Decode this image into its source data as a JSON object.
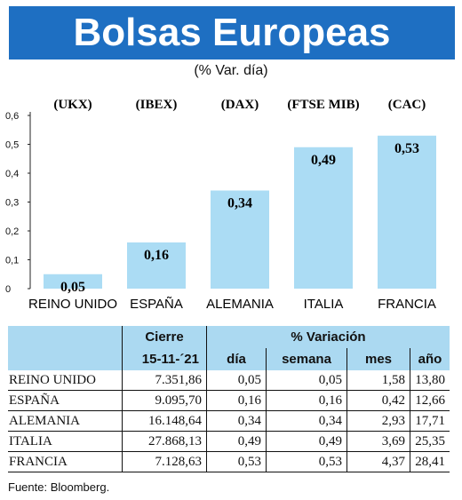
{
  "header": {
    "title": "Bolsas Europeas",
    "subtitle": "(% Var. día)"
  },
  "chart_data": {
    "type": "bar",
    "categories": [
      "REINO UNIDO",
      "ESPAÑA",
      "ALEMANIA",
      "ITALIA",
      "FRANCIA"
    ],
    "indices": [
      "(UKX)",
      "(IBEX)",
      "(DAX)",
      "(FTSE MIB)",
      "(CAC)"
    ],
    "values": [
      0.05,
      0.16,
      0.34,
      0.49,
      0.53
    ],
    "value_labels": [
      "0,05",
      "0,16",
      "0,34",
      "0,49",
      "0,53"
    ],
    "yticks": [
      "0",
      "0,1",
      "0,2",
      "0,3",
      "0,4",
      "0,5",
      "0,6"
    ],
    "ylim": [
      0,
      0.6
    ],
    "bar_color": "#abdcf4",
    "grid": false
  },
  "table": {
    "group_headers": {
      "cierre": "Cierre",
      "variacion": "% Variación"
    },
    "sub_headers": {
      "date": "15-11-´21",
      "dia": "día",
      "semana": "semana",
      "mes": "mes",
      "ano": "año"
    },
    "rows": [
      {
        "name": "REINO UNIDO",
        "cierre": "7.351,86",
        "dia": "0,05",
        "semana": "0,05",
        "mes": "1,58",
        "ano": "13,80"
      },
      {
        "name": "ESPAÑA",
        "cierre": "9.095,70",
        "dia": "0,16",
        "semana": "0,16",
        "mes": "0,42",
        "ano": "12,66"
      },
      {
        "name": "ALEMANIA",
        "cierre": "16.148,64",
        "dia": "0,34",
        "semana": "0,34",
        "mes": "2,93",
        "ano": "17,71"
      },
      {
        "name": "ITALIA",
        "cierre": "27.868,13",
        "dia": "0,49",
        "semana": "0,49",
        "mes": "3,69",
        "ano": "25,35"
      },
      {
        "name": "FRANCIA",
        "cierre": "7.128,63",
        "dia": "0,53",
        "semana": "0,53",
        "mes": "4,37",
        "ano": "28,41"
      }
    ]
  },
  "footer": {
    "source": "Fuente: Bloomberg."
  }
}
